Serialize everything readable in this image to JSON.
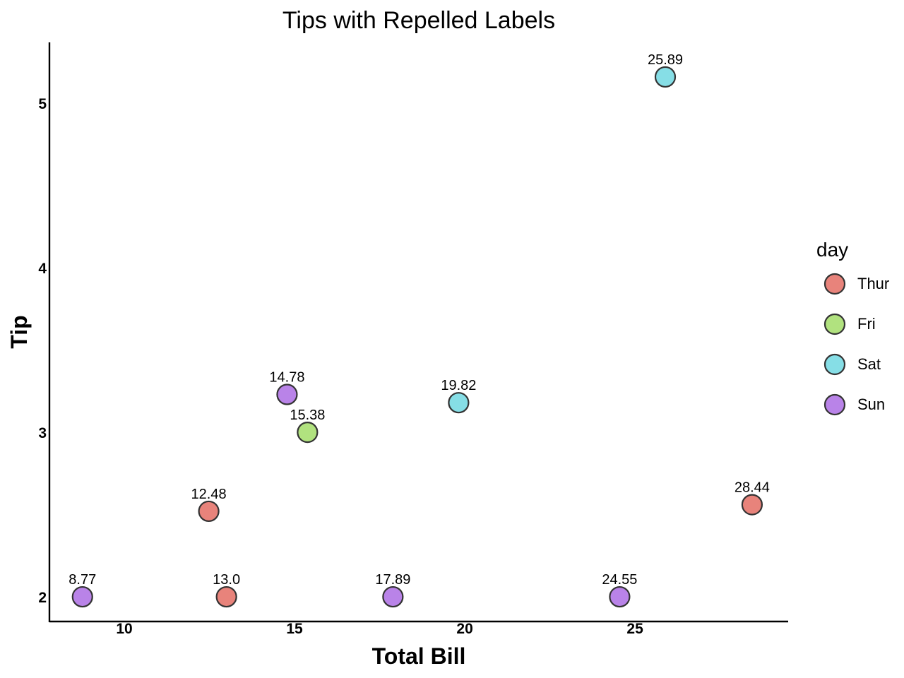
{
  "chart_data": {
    "type": "scatter",
    "title": "Tips with Repelled Labels",
    "xlabel": "Total Bill",
    "ylabel": "Tip",
    "xlim": [
      7.8,
      29.5
    ],
    "ylim": [
      1.85,
      5.37
    ],
    "x_ticks": [
      10,
      15,
      20,
      25
    ],
    "y_ticks": [
      2,
      3,
      4,
      5
    ],
    "grid": false,
    "legend": {
      "title": "day",
      "position": "right",
      "entries": [
        {
          "name": "Thur",
          "color": "#E8837B"
        },
        {
          "name": "Fri",
          "color": "#B1E27F"
        },
        {
          "name": "Sat",
          "color": "#86DEE6"
        },
        {
          "name": "Sun",
          "color": "#B983E8"
        }
      ]
    },
    "points": [
      {
        "x": 8.77,
        "y": 2.0,
        "day": "Sun",
        "label": "8.77"
      },
      {
        "x": 12.48,
        "y": 2.52,
        "day": "Thur",
        "label": "12.48"
      },
      {
        "x": 13.0,
        "y": 2.0,
        "day": "Thur",
        "label": "13.0"
      },
      {
        "x": 14.78,
        "y": 3.23,
        "day": "Sun",
        "label": "14.78"
      },
      {
        "x": 15.38,
        "y": 3.0,
        "day": "Fri",
        "label": "15.38"
      },
      {
        "x": 17.89,
        "y": 2.0,
        "day": "Sun",
        "label": "17.89"
      },
      {
        "x": 19.82,
        "y": 3.18,
        "day": "Sat",
        "label": "19.82"
      },
      {
        "x": 24.55,
        "y": 2.0,
        "day": "Sun",
        "label": "24.55"
      },
      {
        "x": 25.89,
        "y": 5.16,
        "day": "Sat",
        "label": "25.89"
      },
      {
        "x": 28.44,
        "y": 2.56,
        "day": "Thur",
        "label": "28.44"
      }
    ]
  }
}
